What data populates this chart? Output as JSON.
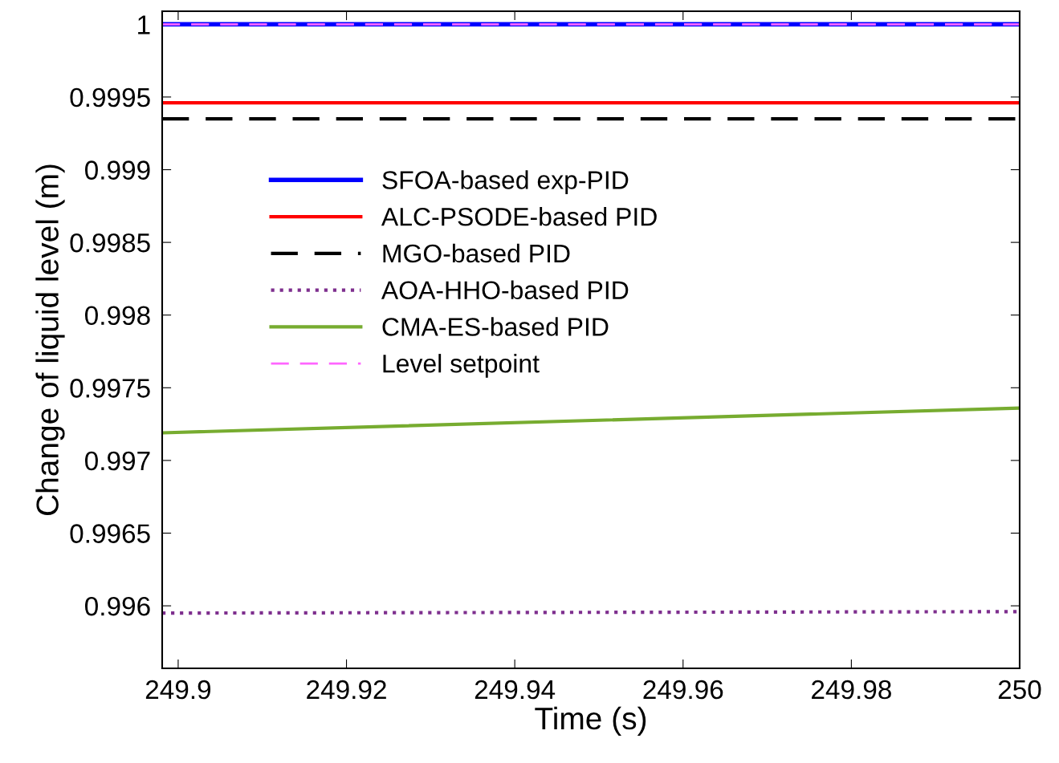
{
  "chart_data": {
    "type": "line",
    "xlabel": "Time (s)",
    "ylabel": "Change of liquid level (m)",
    "xlim": [
      249.8981,
      250
    ],
    "ylim": [
      0.99557,
      1.00009
    ],
    "xticks": [
      {
        "value": 249.9,
        "label": "249.9"
      },
      {
        "value": 249.92,
        "label": "249.92"
      },
      {
        "value": 249.94,
        "label": "249.94"
      },
      {
        "value": 249.96,
        "label": "249.96"
      },
      {
        "value": 249.98,
        "label": "249.98"
      },
      {
        "value": 250,
        "label": "250"
      }
    ],
    "yticks": [
      {
        "value": 0.996,
        "label": "0.996"
      },
      {
        "value": 0.9965,
        "label": "0.9965"
      },
      {
        "value": 0.997,
        "label": "0.997"
      },
      {
        "value": 0.9975,
        "label": "0.9975"
      },
      {
        "value": 0.998,
        "label": "0.998"
      },
      {
        "value": 0.9985,
        "label": "0.9985"
      },
      {
        "value": 0.999,
        "label": "0.999"
      },
      {
        "value": 0.9995,
        "label": "0.9995"
      },
      {
        "value": 1,
        "label": "1"
      }
    ],
    "x": [
      249.8981,
      250
    ],
    "grid": false,
    "legend": "center left",
    "marker": "none",
    "series": [
      {
        "name": "SFOA-based exp-PID",
        "color": "#0000ff",
        "values": [
          1.0,
          1.0
        ],
        "line_style": "solid"
      },
      {
        "name": "ALC-PSODE-based PID",
        "color": "#ff0000",
        "values": [
          0.99946,
          0.99946
        ],
        "line_style": "solid"
      },
      {
        "name": "MGO-based PID",
        "color": "#000000",
        "values": [
          0.99935,
          0.99935
        ],
        "line_style": "dashed"
      },
      {
        "name": "AOA-HHO-based PID",
        "color": "#7e2f8e",
        "values": [
          0.99595,
          0.99596
        ],
        "line_style": "dotted"
      },
      {
        "name": "CMA-ES-based PID",
        "color": "#77ac30",
        "values": [
          0.99719,
          0.99736
        ],
        "line_style": "solid"
      },
      {
        "name": "Level setpoint",
        "color": "#ff66ff",
        "values": [
          1.0,
          1.0
        ],
        "line_style": "dashed"
      }
    ]
  }
}
